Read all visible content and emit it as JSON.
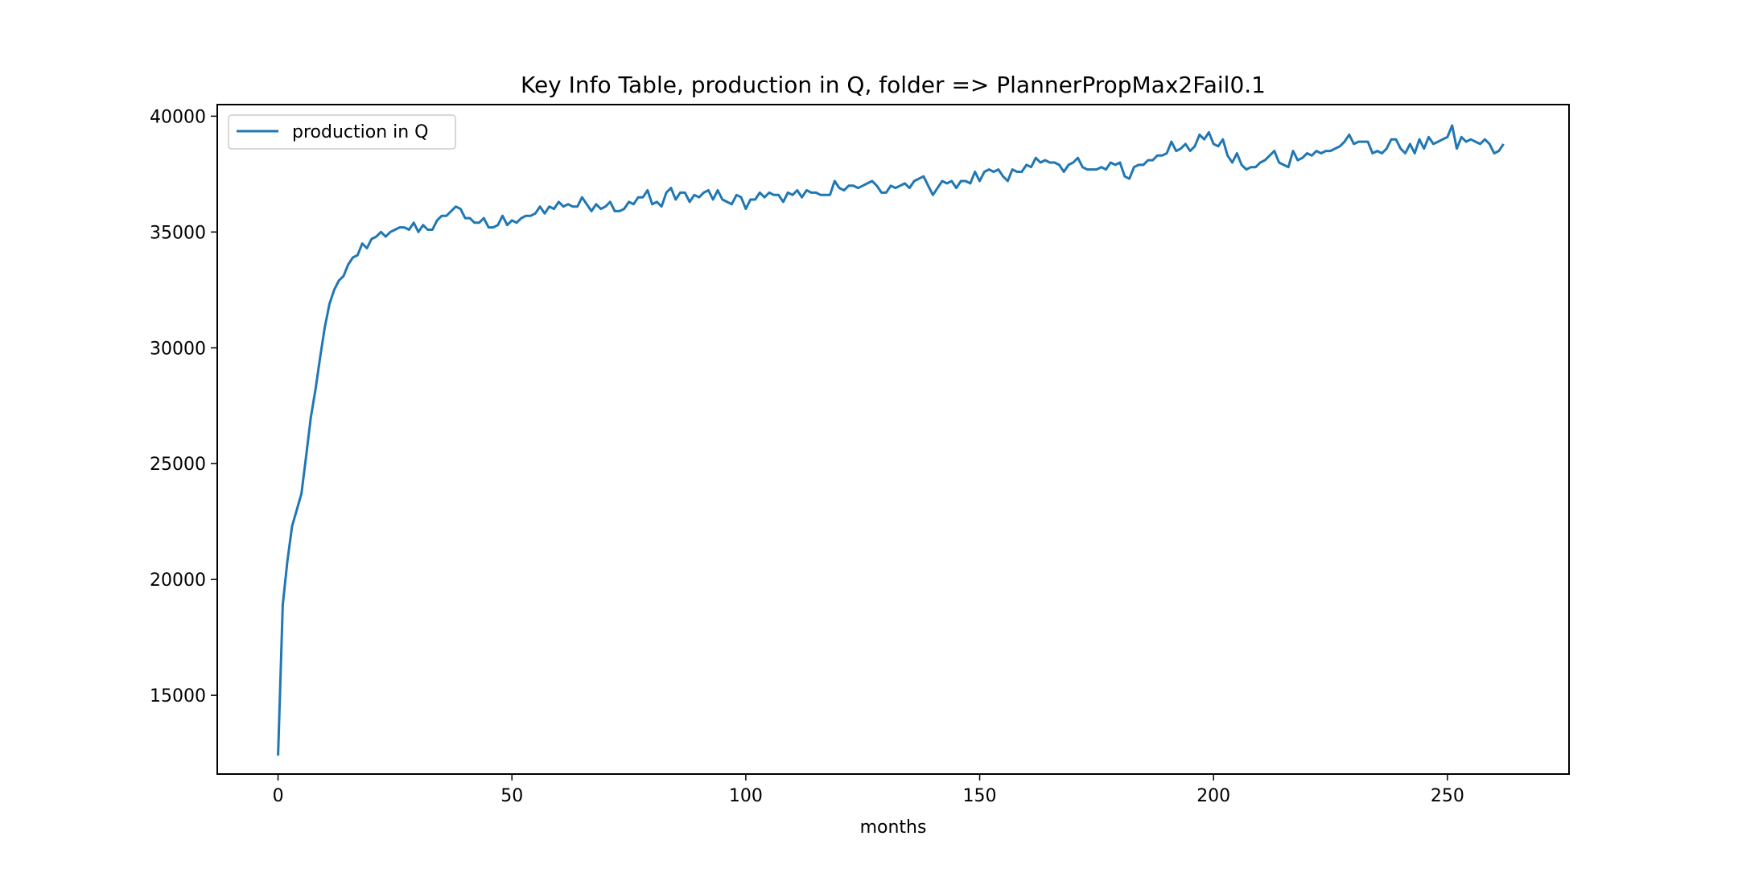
{
  "chart_data": {
    "type": "line",
    "title": "Key Info Table, production in Q, folder => PlannerPropMax2Fail0.1",
    "xlabel": "months",
    "ylabel": "",
    "xlim": [
      -13,
      276
    ],
    "ylim": [
      11600,
      40500
    ],
    "xticks": [
      0,
      50,
      100,
      150,
      200,
      250
    ],
    "yticks": [
      15000,
      20000,
      25000,
      30000,
      35000,
      40000
    ],
    "legend_position": "upper left",
    "grid": false,
    "colors": {
      "series": "#1f77b4",
      "axes": "#000000",
      "background": "#ffffff"
    },
    "series": [
      {
        "name": "production in Q",
        "points": [
          [
            0,
            12400
          ],
          [
            1,
            18900
          ],
          [
            2,
            20800
          ],
          [
            3,
            22300
          ],
          [
            4,
            23000
          ],
          [
            5,
            23700
          ],
          [
            6,
            25300
          ],
          [
            7,
            27000
          ],
          [
            8,
            28200
          ],
          [
            9,
            29600
          ],
          [
            10,
            30900
          ],
          [
            11,
            31900
          ],
          [
            12,
            32500
          ],
          [
            13,
            32900
          ],
          [
            14,
            33100
          ],
          [
            15,
            33600
          ],
          [
            16,
            33900
          ],
          [
            17,
            34000
          ],
          [
            18,
            34500
          ],
          [
            19,
            34300
          ],
          [
            20,
            34700
          ],
          [
            21,
            34800
          ],
          [
            22,
            35000
          ],
          [
            23,
            34800
          ],
          [
            24,
            35000
          ],
          [
            25,
            35100
          ],
          [
            26,
            35200
          ],
          [
            27,
            35200
          ],
          [
            28,
            35100
          ],
          [
            29,
            35400
          ],
          [
            30,
            35000
          ],
          [
            31,
            35300
          ],
          [
            32,
            35100
          ],
          [
            33,
            35100
          ],
          [
            34,
            35500
          ],
          [
            35,
            35700
          ],
          [
            36,
            35700
          ],
          [
            37,
            35900
          ],
          [
            38,
            36100
          ],
          [
            39,
            36000
          ],
          [
            40,
            35600
          ],
          [
            41,
            35600
          ],
          [
            42,
            35400
          ],
          [
            43,
            35400
          ],
          [
            44,
            35600
          ],
          [
            45,
            35200
          ],
          [
            46,
            35200
          ],
          [
            47,
            35300
          ],
          [
            48,
            35700
          ],
          [
            49,
            35300
          ],
          [
            50,
            35500
          ],
          [
            51,
            35400
          ],
          [
            52,
            35600
          ],
          [
            53,
            35700
          ],
          [
            54,
            35700
          ],
          [
            55,
            35800
          ],
          [
            56,
            36100
          ],
          [
            57,
            35800
          ],
          [
            58,
            36100
          ],
          [
            59,
            36000
          ],
          [
            60,
            36300
          ],
          [
            61,
            36100
          ],
          [
            62,
            36200
          ],
          [
            63,
            36100
          ],
          [
            64,
            36100
          ],
          [
            65,
            36500
          ],
          [
            66,
            36200
          ],
          [
            67,
            35900
          ],
          [
            68,
            36200
          ],
          [
            69,
            36000
          ],
          [
            70,
            36100
          ],
          [
            71,
            36300
          ],
          [
            72,
            35900
          ],
          [
            73,
            35900
          ],
          [
            74,
            36000
          ],
          [
            75,
            36300
          ],
          [
            76,
            36200
          ],
          [
            77,
            36500
          ],
          [
            78,
            36500
          ],
          [
            79,
            36800
          ],
          [
            80,
            36200
          ],
          [
            81,
            36300
          ],
          [
            82,
            36100
          ],
          [
            83,
            36700
          ],
          [
            84,
            36900
          ],
          [
            85,
            36400
          ],
          [
            86,
            36700
          ],
          [
            87,
            36700
          ],
          [
            88,
            36300
          ],
          [
            89,
            36600
          ],
          [
            90,
            36500
          ],
          [
            91,
            36700
          ],
          [
            92,
            36800
          ],
          [
            93,
            36400
          ],
          [
            94,
            36800
          ],
          [
            95,
            36400
          ],
          [
            96,
            36300
          ],
          [
            97,
            36200
          ],
          [
            98,
            36600
          ],
          [
            99,
            36500
          ],
          [
            100,
            36000
          ],
          [
            101,
            36400
          ],
          [
            102,
            36400
          ],
          [
            103,
            36700
          ],
          [
            104,
            36500
          ],
          [
            105,
            36700
          ],
          [
            106,
            36600
          ],
          [
            107,
            36600
          ],
          [
            108,
            36300
          ],
          [
            109,
            36700
          ],
          [
            110,
            36600
          ],
          [
            111,
            36800
          ],
          [
            112,
            36500
          ],
          [
            113,
            36800
          ],
          [
            114,
            36700
          ],
          [
            115,
            36700
          ],
          [
            116,
            36600
          ],
          [
            117,
            36600
          ],
          [
            118,
            36600
          ],
          [
            119,
            37200
          ],
          [
            120,
            36900
          ],
          [
            121,
            36800
          ],
          [
            122,
            37000
          ],
          [
            123,
            37000
          ],
          [
            124,
            36900
          ],
          [
            125,
            37000
          ],
          [
            126,
            37100
          ],
          [
            127,
            37200
          ],
          [
            128,
            37000
          ],
          [
            129,
            36700
          ],
          [
            130,
            36700
          ],
          [
            131,
            37000
          ],
          [
            132,
            36900
          ],
          [
            133,
            37000
          ],
          [
            134,
            37100
          ],
          [
            135,
            36900
          ],
          [
            136,
            37200
          ],
          [
            137,
            37300
          ],
          [
            138,
            37400
          ],
          [
            139,
            37000
          ],
          [
            140,
            36600
          ],
          [
            141,
            36900
          ],
          [
            142,
            37200
          ],
          [
            143,
            37100
          ],
          [
            144,
            37200
          ],
          [
            145,
            36900
          ],
          [
            146,
            37200
          ],
          [
            147,
            37200
          ],
          [
            148,
            37100
          ],
          [
            149,
            37600
          ],
          [
            150,
            37200
          ],
          [
            151,
            37600
          ],
          [
            152,
            37700
          ],
          [
            153,
            37600
          ],
          [
            154,
            37700
          ],
          [
            155,
            37400
          ],
          [
            156,
            37200
          ],
          [
            157,
            37700
          ],
          [
            158,
            37600
          ],
          [
            159,
            37600
          ],
          [
            160,
            37900
          ],
          [
            161,
            37800
          ],
          [
            162,
            38200
          ],
          [
            163,
            38000
          ],
          [
            164,
            38100
          ],
          [
            165,
            38000
          ],
          [
            166,
            38000
          ],
          [
            167,
            37900
          ],
          [
            168,
            37600
          ],
          [
            169,
            37900
          ],
          [
            170,
            38000
          ],
          [
            171,
            38200
          ],
          [
            172,
            37800
          ],
          [
            173,
            37700
          ],
          [
            174,
            37700
          ],
          [
            175,
            37700
          ],
          [
            176,
            37800
          ],
          [
            177,
            37700
          ],
          [
            178,
            38000
          ],
          [
            179,
            37900
          ],
          [
            180,
            38000
          ],
          [
            181,
            37400
          ],
          [
            182,
            37300
          ],
          [
            183,
            37800
          ],
          [
            184,
            37900
          ],
          [
            185,
            37900
          ],
          [
            186,
            38100
          ],
          [
            187,
            38100
          ],
          [
            188,
            38300
          ],
          [
            189,
            38300
          ],
          [
            190,
            38400
          ],
          [
            191,
            38900
          ],
          [
            192,
            38500
          ],
          [
            193,
            38600
          ],
          [
            194,
            38800
          ],
          [
            195,
            38500
          ],
          [
            196,
            38700
          ],
          [
            197,
            39200
          ],
          [
            198,
            39000
          ],
          [
            199,
            39300
          ],
          [
            200,
            38800
          ],
          [
            201,
            38700
          ],
          [
            202,
            39000
          ],
          [
            203,
            38300
          ],
          [
            204,
            38000
          ],
          [
            205,
            38400
          ],
          [
            206,
            37900
          ],
          [
            207,
            37700
          ],
          [
            208,
            37800
          ],
          [
            209,
            37800
          ],
          [
            210,
            38000
          ],
          [
            211,
            38100
          ],
          [
            212,
            38300
          ],
          [
            213,
            38500
          ],
          [
            214,
            38000
          ],
          [
            215,
            37900
          ],
          [
            216,
            37800
          ],
          [
            217,
            38500
          ],
          [
            218,
            38100
          ],
          [
            219,
            38200
          ],
          [
            220,
            38400
          ],
          [
            221,
            38300
          ],
          [
            222,
            38500
          ],
          [
            223,
            38400
          ],
          [
            224,
            38500
          ],
          [
            225,
            38500
          ],
          [
            226,
            38600
          ],
          [
            227,
            38700
          ],
          [
            228,
            38900
          ],
          [
            229,
            39200
          ],
          [
            230,
            38800
          ],
          [
            231,
            38900
          ],
          [
            232,
            38900
          ],
          [
            233,
            38900
          ],
          [
            234,
            38400
          ],
          [
            235,
            38500
          ],
          [
            236,
            38400
          ],
          [
            237,
            38600
          ],
          [
            238,
            39000
          ],
          [
            239,
            39000
          ],
          [
            240,
            38600
          ],
          [
            241,
            38400
          ],
          [
            242,
            38800
          ],
          [
            243,
            38400
          ],
          [
            244,
            39000
          ],
          [
            245,
            38600
          ],
          [
            246,
            39100
          ],
          [
            247,
            38800
          ],
          [
            248,
            38900
          ],
          [
            249,
            39000
          ],
          [
            250,
            39100
          ],
          [
            251,
            39600
          ],
          [
            252,
            38600
          ],
          [
            253,
            39100
          ],
          [
            254,
            38900
          ],
          [
            255,
            39000
          ],
          [
            256,
            38900
          ],
          [
            257,
            38800
          ],
          [
            258,
            39000
          ],
          [
            259,
            38800
          ],
          [
            260,
            38400
          ],
          [
            261,
            38500
          ],
          [
            262,
            38800
          ]
        ]
      }
    ]
  }
}
